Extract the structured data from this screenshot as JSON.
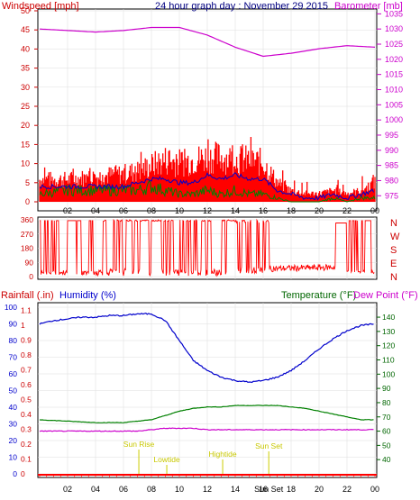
{
  "header": {
    "wind_label": "Windspeed [mph]",
    "title": "24 hour graph day : November 29 2015",
    "baro_label": "Barometer [mb]"
  },
  "mid_header": {
    "rain_label": "Rainfall (.in)",
    "hum_label": "Humidity (%)",
    "temp_label": "Temperature (°F)",
    "dew_label": "Dew Point (°F)"
  },
  "colors": {
    "wind": "#ff0000",
    "gust_area": "#ff0000",
    "avg_wind": "#0000cc",
    "low_wind": "#008000",
    "barometer": "#cc00cc",
    "direction": "#ff0000",
    "humidity": "#0000cc",
    "temperature": "#008000",
    "dewpoint": "#cc00cc",
    "rain": "#ff0000",
    "event": "#cccc00"
  },
  "chart_data": [
    {
      "type": "line",
      "name": "wind-baro",
      "x_ticks": [
        "02",
        "04",
        "06",
        "08",
        "10",
        "12",
        "14",
        "16",
        "18",
        "20",
        "22",
        "00"
      ],
      "left_axis": {
        "ticks": [
          0,
          5,
          10,
          15,
          20,
          25,
          30,
          35,
          40,
          45,
          50
        ],
        "ylim": [
          0,
          50
        ]
      },
      "right_axis": {
        "ticks": [
          975,
          980,
          985,
          990,
          995,
          1000,
          1005,
          1010,
          1015,
          1020,
          1025,
          1030,
          1035
        ],
        "ylim": [
          973,
          1036
        ]
      },
      "barometer": {
        "x": [
          0,
          2,
          4,
          6,
          8,
          10,
          12,
          14,
          16,
          18,
          20,
          22,
          24
        ],
        "y": [
          1030,
          1029.5,
          1029,
          1029.5,
          1030.5,
          1030.5,
          1028,
          1024,
          1021,
          1022,
          1023.5,
          1024.5,
          1024
        ]
      },
      "gust_envelope": {
        "x": [
          0,
          2,
          4,
          6,
          7,
          8,
          9,
          10,
          11,
          12,
          13,
          14,
          15,
          16,
          17,
          18,
          19,
          20,
          21,
          22,
          23,
          24
        ],
        "y": [
          8,
          8,
          9,
          10,
          11,
          13,
          15,
          14,
          15,
          16,
          16,
          15,
          15,
          14,
          7,
          4,
          3,
          3,
          4,
          3,
          4,
          7
        ]
      },
      "avg_wind": {
        "x": [
          0,
          2,
          4,
          6,
          7,
          8,
          9,
          10,
          11,
          12,
          13,
          14,
          15,
          16,
          17,
          18,
          19,
          20,
          21,
          22,
          23,
          24
        ],
        "y": [
          4,
          4,
          4,
          4,
          5,
          6,
          6,
          5,
          5,
          7,
          6,
          7,
          6,
          6,
          3,
          2,
          1,
          1,
          2,
          1,
          2,
          3
        ]
      },
      "low_wind": {
        "x": [
          0,
          2,
          4,
          6,
          7,
          8,
          9,
          10,
          11,
          12,
          13,
          14,
          15,
          16,
          17,
          18,
          19,
          20,
          21,
          22,
          23,
          24
        ],
        "y": [
          2,
          3,
          3,
          3,
          3,
          4,
          3,
          2,
          2,
          3,
          2,
          3,
          2,
          2,
          1,
          0,
          0,
          0,
          1,
          0,
          1,
          1
        ]
      }
    },
    {
      "type": "line",
      "name": "wind-direction",
      "left_axis": {
        "ticks": [
          0,
          90,
          180,
          270,
          360
        ],
        "ylim": [
          0,
          360
        ]
      },
      "right_labels": [
        "N",
        "W",
        "S",
        "E",
        "N"
      ]
    },
    {
      "type": "line",
      "name": "rain-hum-temp",
      "x_ticks": [
        "02",
        "04",
        "06",
        "08",
        "10",
        "12",
        "14",
        "16",
        "18",
        "20",
        "22",
        "00"
      ],
      "humidity_axis": {
        "ticks": [
          0,
          10,
          20,
          30,
          40,
          50,
          60,
          70,
          80,
          90,
          100
        ],
        "ylim": [
          0,
          100
        ]
      },
      "rain_axis": {
        "ticks": [
          "0",
          "0.1",
          "0.2",
          "0.3",
          "0.4",
          "0.5",
          "0.6",
          "0.7",
          "0.8",
          "0.9",
          "1",
          "1.1"
        ]
      },
      "temp_axis": {
        "ticks": [
          40,
          50,
          60,
          70,
          80,
          90,
          100,
          110,
          120,
          130,
          140
        ],
        "ylim": [
          30,
          147
        ]
      },
      "humidity": {
        "x": [
          0,
          1,
          2,
          3,
          4,
          5,
          6,
          7,
          8,
          9,
          10,
          11,
          12,
          13,
          14,
          15,
          16,
          17,
          18,
          19,
          20,
          21,
          22,
          23,
          24
        ],
        "y": [
          90,
          92,
          93,
          94,
          94,
          95,
          95,
          96,
          96,
          92,
          80,
          68,
          62,
          58,
          56,
          55,
          56,
          58,
          62,
          68,
          75,
          81,
          86,
          89,
          90
        ]
      },
      "temperature": {
        "x": [
          0,
          2,
          4,
          6,
          7,
          8,
          9,
          10,
          11,
          12,
          13,
          14,
          15,
          16,
          17,
          18,
          19,
          20,
          21,
          22,
          23,
          24
        ],
        "y": [
          68,
          67,
          66,
          66,
          67,
          68,
          71,
          74,
          76,
          77,
          77,
          78,
          78,
          78,
          78,
          77,
          76,
          74,
          72,
          70,
          68,
          68
        ]
      },
      "dewpoint": {
        "x": [
          0,
          2,
          4,
          6,
          7,
          8,
          9,
          10,
          11,
          12,
          13,
          14,
          15,
          16,
          17,
          18,
          19,
          20,
          21,
          22,
          23,
          24
        ],
        "y": [
          60,
          60,
          60,
          60,
          60,
          61,
          62,
          62,
          62,
          61,
          61,
          61,
          61,
          61,
          61,
          61,
          61,
          61,
          61,
          61,
          61,
          61
        ]
      },
      "events": [
        {
          "label": "Sun Rise",
          "x": 7.1
        },
        {
          "label": "Lowtide",
          "x": 9.1
        },
        {
          "label": "Hightide",
          "x": 13.1
        },
        {
          "label": "Sun Set",
          "x": 16.4
        }
      ],
      "bottom_overlay": "Sun Set"
    }
  ]
}
